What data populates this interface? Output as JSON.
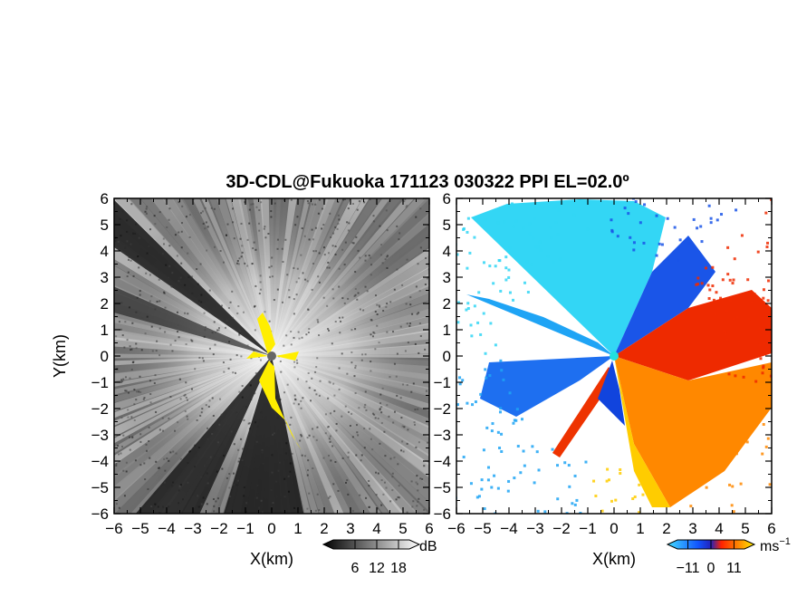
{
  "chart_data": {
    "title": "3D-CDL@Fukuoka 171123 030322 PPI EL=02.0º",
    "panels": [
      {
        "type": "heatmap",
        "quantity": "reflectivity",
        "xlabel": "X(km)",
        "ylabel": "Y(km)",
        "xlim": [
          -6,
          6
        ],
        "ylim": [
          -6,
          6
        ],
        "xticks": [
          "−6",
          "−5",
          "−4",
          "−3",
          "−2",
          "−1",
          "0",
          "1",
          "2",
          "3",
          "4",
          "5",
          "6"
        ],
        "yticks": [
          "6",
          "5",
          "4",
          "3",
          "2",
          "1",
          "0",
          "−1",
          "−2",
          "−3",
          "−4",
          "−5",
          "−6"
        ],
        "colorbar": {
          "unit": "dB",
          "ticks": [
            "6",
            "12",
            "18"
          ],
          "range": [
            0,
            21
          ]
        }
      },
      {
        "type": "heatmap",
        "quantity": "doppler velocity",
        "xlabel": "X(km)",
        "xlim": [
          -6,
          6
        ],
        "ylim": [
          -6,
          6
        ],
        "xticks": [
          "−6",
          "−5",
          "−4",
          "−3",
          "−2",
          "−1",
          "0",
          "1",
          "2",
          "3",
          "4",
          "5",
          "6"
        ],
        "yticks": [
          "6",
          "5",
          "4",
          "3",
          "2",
          "1",
          "0",
          "−1",
          "−2",
          "−3",
          "−4",
          "−5",
          "−6"
        ],
        "colorbar": {
          "unit": "ms",
          "unit_exp": "−1",
          "ticks": [
            "−11",
            "0",
            "11"
          ],
          "range": [
            -16,
            16
          ]
        }
      }
    ]
  },
  "colors": {
    "yellow": "#ffee00",
    "radar_site_left": "#666666",
    "radar_site_right": "#22e0e0",
    "cyan": "#22e0f0",
    "blue": "#1144ee",
    "red": "#ee2200",
    "orange": "#ff8800"
  }
}
